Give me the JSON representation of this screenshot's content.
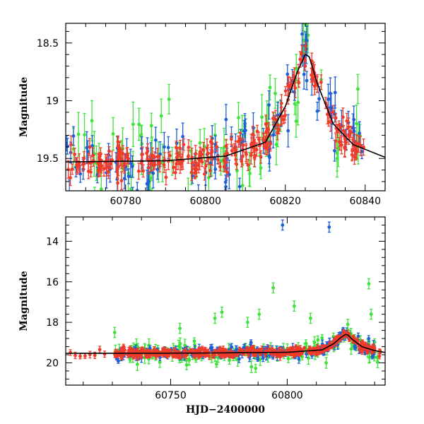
{
  "chart_data": [
    {
      "type": "scatter",
      "panel": "top",
      "xlim": [
        60765,
        60845
      ],
      "ylim": [
        19.78,
        18.33
      ],
      "inverted_y": true,
      "xticks": [
        60780,
        60800,
        60820,
        60840
      ],
      "yticks": [
        18.5,
        19,
        19.5
      ],
      "xtick_labels": [
        "60780",
        "60800",
        "60820",
        "60840"
      ],
      "ytick_labels": [
        "18.5",
        "19",
        "19.5"
      ],
      "xlabel": "",
      "ylabel": "Magnitude",
      "colors": {
        "blue": "#1f5fd6",
        "red": "#f03a2a",
        "green": "#3fe23a",
        "model": "#000000"
      },
      "model_curve": {
        "x": [
          60765,
          60790,
          60805,
          60815,
          60820,
          60823,
          60825,
          60826,
          60828,
          60832,
          60837,
          60845
        ],
        "y": [
          19.53,
          19.52,
          19.48,
          19.36,
          19.05,
          18.75,
          18.6,
          18.62,
          18.85,
          19.2,
          19.38,
          19.49
        ]
      }
    },
    {
      "type": "scatter",
      "panel": "bottom",
      "xlim": [
        60705,
        60842
      ],
      "ylim": [
        21.1,
        12.8
      ],
      "inverted_y": true,
      "xticks": [
        60750,
        60800
      ],
      "yticks": [
        14,
        16,
        18,
        20
      ],
      "xtick_labels": [
        "60750",
        "60800"
      ],
      "ytick_labels": [
        "14",
        "16",
        "18",
        "20"
      ],
      "xlabel": "HJD−2400000",
      "ylabel": "Magnitude",
      "colors": {
        "blue": "#1f5fd6",
        "red": "#f03a2a",
        "green": "#3fe23a",
        "model": "#000000"
      },
      "model_curve": {
        "x": [
          60705,
          60760,
          60800,
          60815,
          60820,
          60823,
          60825,
          60826,
          60828,
          60832,
          60837,
          60842
        ],
        "y": [
          19.53,
          19.52,
          19.48,
          19.36,
          19.05,
          18.75,
          18.6,
          18.62,
          18.85,
          19.2,
          19.38,
          19.49
        ]
      },
      "outliers": [
        {
          "color": "blue",
          "x": 60798,
          "y": 13.2
        },
        {
          "color": "blue",
          "x": 60818,
          "y": 13.3
        },
        {
          "color": "green",
          "x": 60794,
          "y": 16.3
        },
        {
          "color": "green",
          "x": 60835,
          "y": 16.1
        },
        {
          "color": "green",
          "x": 60769,
          "y": 17.8
        },
        {
          "color": "green",
          "x": 60772,
          "y": 17.5
        },
        {
          "color": "green",
          "x": 60788,
          "y": 17.6
        },
        {
          "color": "green",
          "x": 60803,
          "y": 17.2
        },
        {
          "color": "green",
          "x": 60810,
          "y": 17.8
        },
        {
          "color": "green",
          "x": 60826,
          "y": 18.1
        },
        {
          "color": "green",
          "x": 60836,
          "y": 17.6
        },
        {
          "color": "green",
          "x": 60726,
          "y": 18.5
        },
        {
          "color": "green",
          "x": 60754,
          "y": 18.3
        },
        {
          "color": "green",
          "x": 60783,
          "y": 18.0
        }
      ]
    }
  ]
}
